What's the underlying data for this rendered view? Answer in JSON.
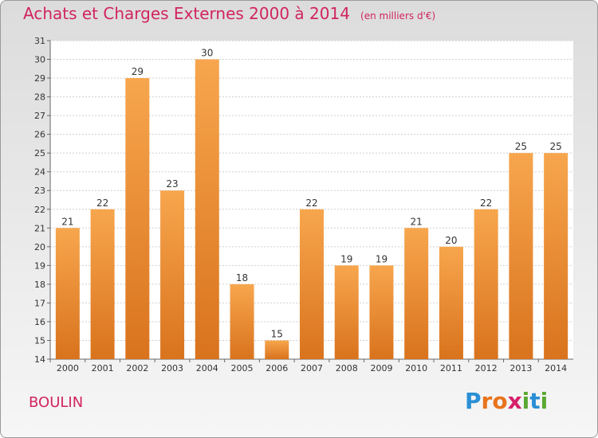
{
  "title": "Achats et Charges Externes 2000 à 2014",
  "subtitle": "(en milliers d'€)",
  "commune": "BOULIN",
  "logo": {
    "text": "Proxiti",
    "letters": [
      {
        "ch": "P",
        "color": "#2a8fd6"
      },
      {
        "ch": "r",
        "color": "#e8741c"
      },
      {
        "ch": "o",
        "color": "#e8741c"
      },
      {
        "ch": "x",
        "color": "#d6206a"
      },
      {
        "ch": "i",
        "color": "#5aa832"
      },
      {
        "ch": "t",
        "color": "#2a8fd6"
      },
      {
        "ch": "i",
        "color": "#5aa832"
      }
    ]
  },
  "chart_data": {
    "type": "bar",
    "title": "Achats et Charges Externes 2000 à 2014",
    "subtitle": "(en milliers d'€)",
    "categories": [
      "2000",
      "2001",
      "2002",
      "2003",
      "2004",
      "2005",
      "2006",
      "2007",
      "2008",
      "2009",
      "2010",
      "2011",
      "2012",
      "2013",
      "2014"
    ],
    "values": [
      21,
      22,
      29,
      23,
      30,
      18,
      15,
      22,
      19,
      19,
      21,
      20,
      22,
      25,
      25
    ],
    "ylim": [
      14,
      31
    ],
    "yticks": [
      14,
      15,
      16,
      17,
      18,
      19,
      20,
      21,
      22,
      23,
      24,
      25,
      26,
      27,
      28,
      29,
      30,
      31
    ],
    "grid": true,
    "bar_color_top": "#f7a64e",
    "bar_color_bottom": "#d9731d"
  }
}
